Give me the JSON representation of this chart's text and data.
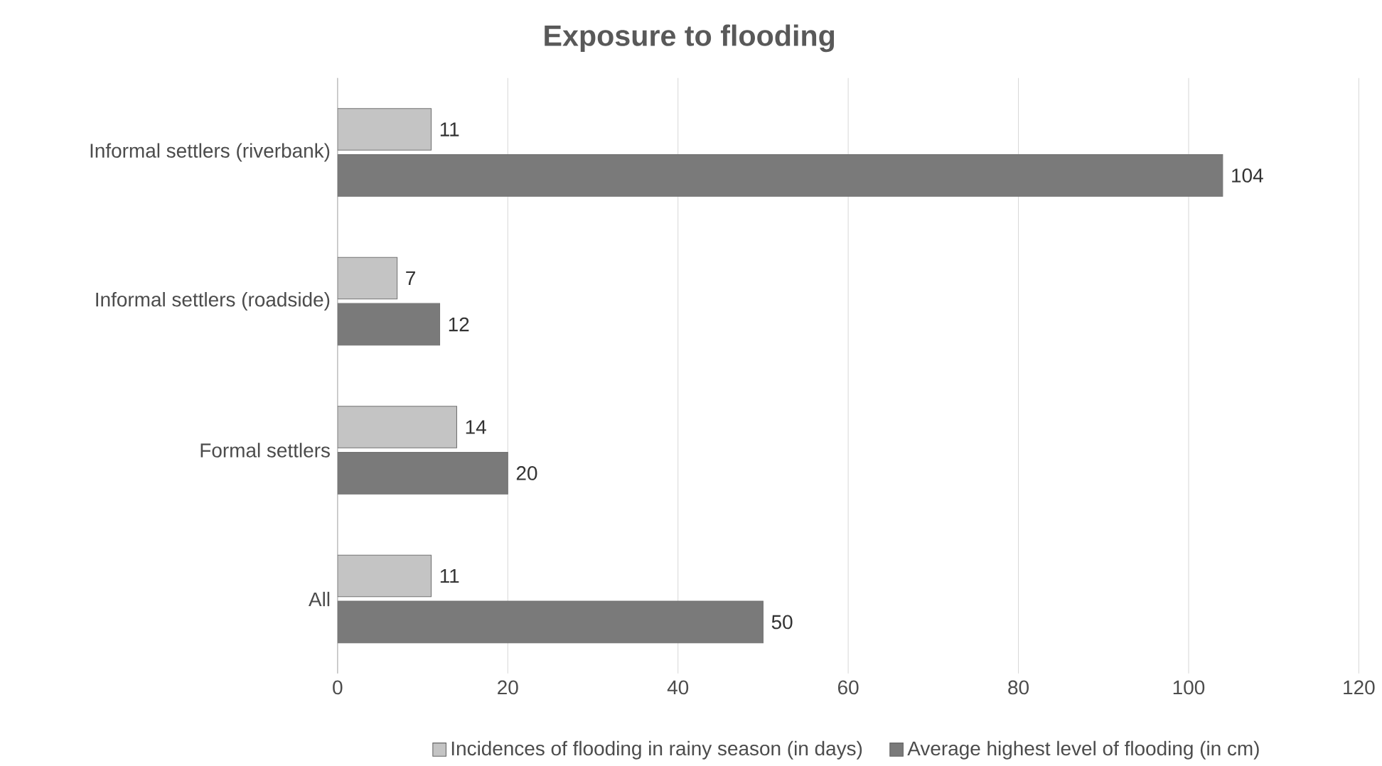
{
  "chart_data": {
    "type": "bar",
    "orientation": "horizontal",
    "title": "Exposure to flooding",
    "categories": [
      "Informal settlers (riverbank)",
      "Informal settlers (roadside)",
      "Formal settlers",
      "All"
    ],
    "series": [
      {
        "name": "Incidences of flooding in rainy season (in days)",
        "color": "#c4c4c4",
        "values": [
          11,
          7,
          14,
          11
        ]
      },
      {
        "name": "Average highest level of flooding (in cm)",
        "color": "#7a7a7a",
        "values": [
          104,
          12,
          20,
          50
        ]
      }
    ],
    "xlim": [
      0,
      120
    ],
    "xticks": [
      0,
      20,
      40,
      60,
      80,
      100,
      120
    ],
    "grid": "x",
    "legend": "bottom",
    "data_labels": true
  }
}
